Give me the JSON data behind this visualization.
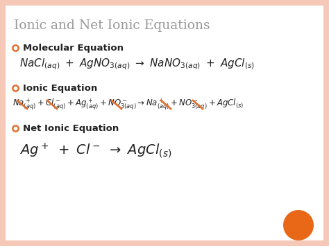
{
  "title": "Ionic and Net Ionic Equations",
  "title_color": "#999999",
  "background_color": "#ffffff",
  "border_color": "#f5c8b8",
  "bullet_color": "#e07030",
  "text_color": "#222222",
  "mol_label": "Molecular Equation",
  "ion_label": "Ionic Equation",
  "net_label": "Net Ionic Equation",
  "orange_circle_color": "#e86818",
  "slash_color": "#e07030"
}
